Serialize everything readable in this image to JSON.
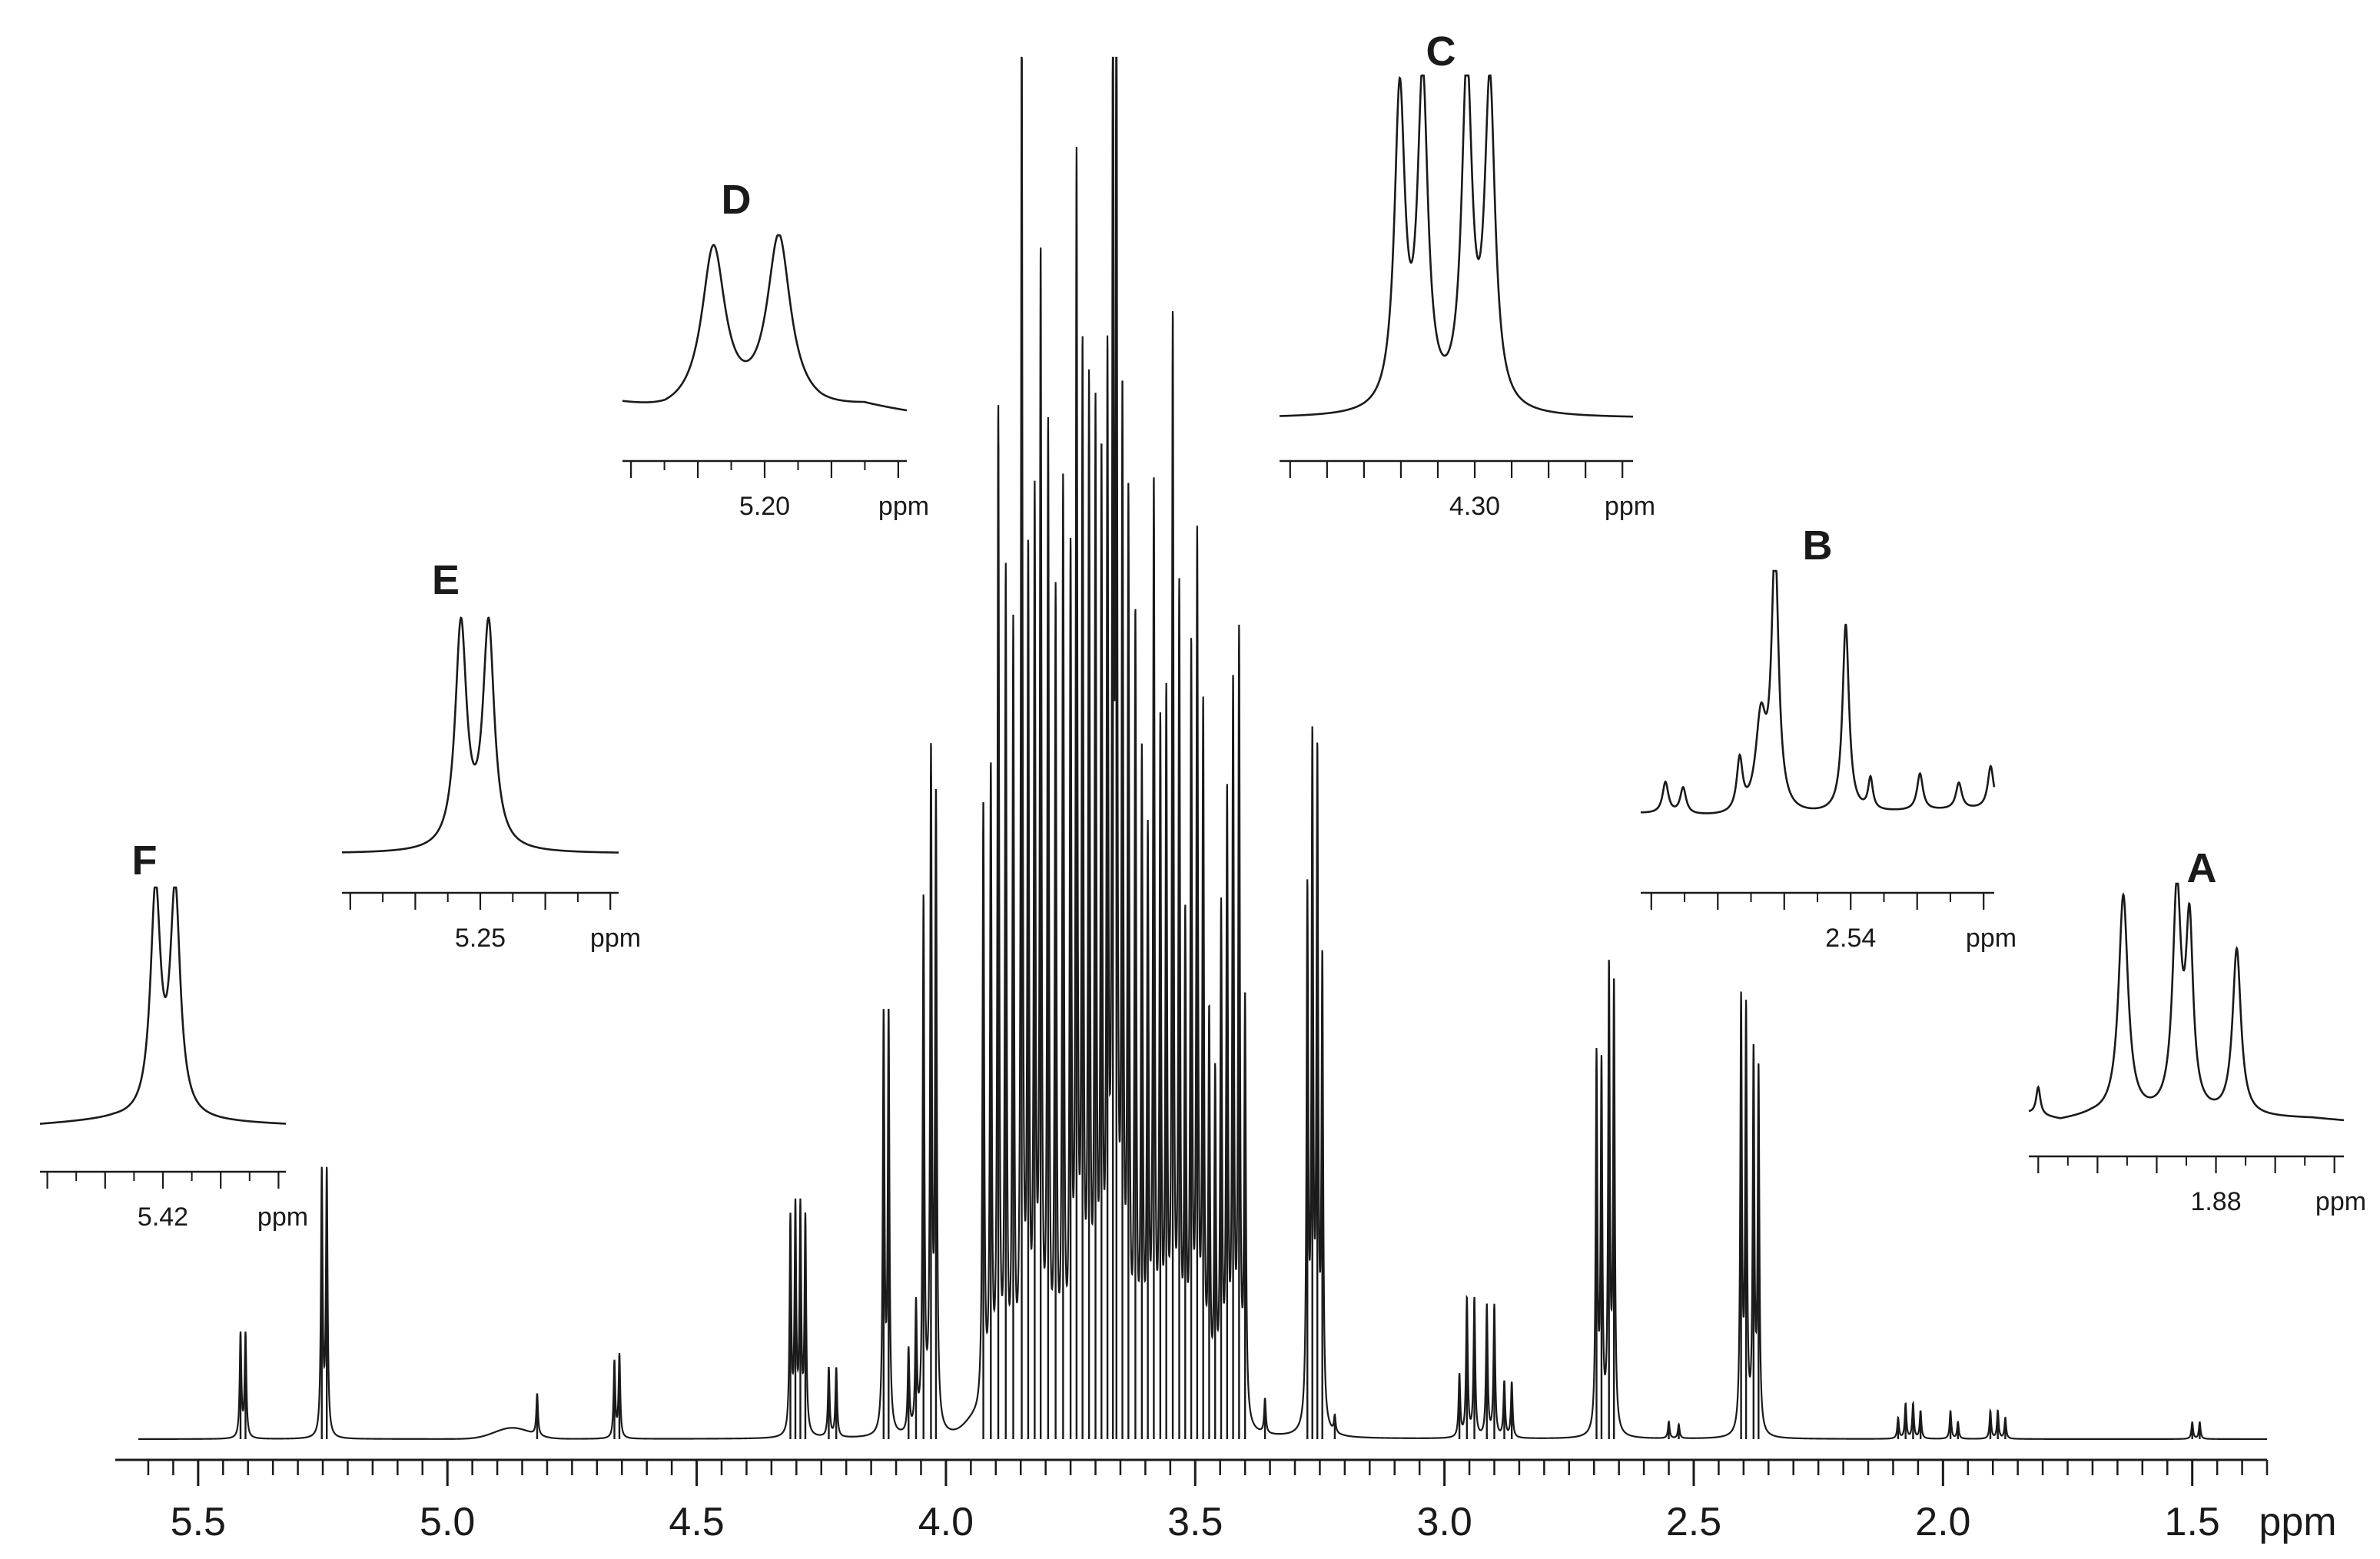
{
  "chart_data": [
    {
      "id": "main",
      "type": "line",
      "x_axis": {
        "unit": "ppm",
        "range": [
          5.62,
          1.35
        ],
        "reversed": true,
        "major_ticks": [
          5.5,
          5.0,
          4.5,
          4.0,
          3.5,
          3.0,
          2.5,
          2.0,
          1.5
        ],
        "tick_labels": [
          "5.5",
          "5.0",
          "4.5",
          "4.0",
          "3.5",
          "3.0",
          "2.5",
          "2.0",
          "1.5"
        ],
        "minor_step": 0.05
      },
      "y_axis": {
        "visible": false,
        "range": [
          0,
          1.0
        ]
      },
      "grid": false,
      "baseline_bumps": [
        {
          "x": 4.87,
          "height": 0.008,
          "width": 0.05
        },
        {
          "x": 3.94,
          "height": 0.01,
          "width": 0.03
        }
      ],
      "peaks": [
        {
          "x": 5.415,
          "h": 0.075,
          "w": 0.002
        },
        {
          "x": 5.405,
          "h": 0.075,
          "w": 0.002
        },
        {
          "x": 5.252,
          "h": 0.19,
          "w": 0.002
        },
        {
          "x": 5.242,
          "h": 0.19,
          "w": 0.002
        },
        {
          "x": 4.82,
          "h": 0.03,
          "w": 0.002
        },
        {
          "x": 4.665,
          "h": 0.055,
          "w": 0.002
        },
        {
          "x": 4.655,
          "h": 0.06,
          "w": 0.002
        },
        {
          "x": 4.312,
          "h": 0.155,
          "w": 0.002
        },
        {
          "x": 4.302,
          "h": 0.16,
          "w": 0.002
        },
        {
          "x": 4.292,
          "h": 0.16,
          "w": 0.002
        },
        {
          "x": 4.282,
          "h": 0.155,
          "w": 0.002
        },
        {
          "x": 4.235,
          "h": 0.05,
          "w": 0.002
        },
        {
          "x": 4.22,
          "h": 0.05,
          "w": 0.002
        },
        {
          "x": 4.125,
          "h": 0.3,
          "w": 0.002
        },
        {
          "x": 4.115,
          "h": 0.3,
          "w": 0.002
        },
        {
          "x": 4.075,
          "h": 0.06,
          "w": 0.002
        },
        {
          "x": 4.06,
          "h": 0.09,
          "w": 0.002
        },
        {
          "x": 4.045,
          "h": 0.38,
          "w": 0.002
        },
        {
          "x": 4.03,
          "h": 0.48,
          "w": 0.002
        },
        {
          "x": 4.02,
          "h": 0.45,
          "w": 0.002
        },
        {
          "x": 3.925,
          "h": 0.44,
          "w": 0.002
        },
        {
          "x": 3.91,
          "h": 0.46,
          "w": 0.002
        },
        {
          "x": 3.895,
          "h": 0.72,
          "w": 0.002
        },
        {
          "x": 3.88,
          "h": 0.6,
          "w": 0.002
        },
        {
          "x": 3.865,
          "h": 0.56,
          "w": 0.002
        },
        {
          "x": 3.848,
          "h": 1.0,
          "w": 0.002
        },
        {
          "x": 3.835,
          "h": 0.6,
          "w": 0.002
        },
        {
          "x": 3.822,
          "h": 0.64,
          "w": 0.002
        },
        {
          "x": 3.81,
          "h": 0.82,
          "w": 0.002
        },
        {
          "x": 3.795,
          "h": 0.7,
          "w": 0.002
        },
        {
          "x": 3.78,
          "h": 0.58,
          "w": 0.002
        },
        {
          "x": 3.765,
          "h": 0.66,
          "w": 0.002
        },
        {
          "x": 3.75,
          "h": 0.6,
          "w": 0.002
        },
        {
          "x": 3.738,
          "h": 0.88,
          "w": 0.002
        },
        {
          "x": 3.726,
          "h": 0.74,
          "w": 0.002
        },
        {
          "x": 3.713,
          "h": 0.72,
          "w": 0.002
        },
        {
          "x": 3.7,
          "h": 0.7,
          "w": 0.002
        },
        {
          "x": 3.688,
          "h": 0.66,
          "w": 0.002
        },
        {
          "x": 3.676,
          "h": 0.72,
          "w": 0.002
        },
        {
          "x": 3.665,
          "h": 1.0,
          "w": 0.002
        },
        {
          "x": 3.658,
          "h": 1.0,
          "w": 0.002
        },
        {
          "x": 3.646,
          "h": 0.7,
          "w": 0.002
        },
        {
          "x": 3.634,
          "h": 0.64,
          "w": 0.002
        },
        {
          "x": 3.62,
          "h": 0.56,
          "w": 0.002
        },
        {
          "x": 3.607,
          "h": 0.46,
          "w": 0.002
        },
        {
          "x": 3.595,
          "h": 0.4,
          "w": 0.002
        },
        {
          "x": 3.583,
          "h": 0.66,
          "w": 0.002
        },
        {
          "x": 3.57,
          "h": 0.48,
          "w": 0.002
        },
        {
          "x": 3.558,
          "h": 0.5,
          "w": 0.002
        },
        {
          "x": 3.545,
          "h": 0.78,
          "w": 0.002
        },
        {
          "x": 3.532,
          "h": 0.58,
          "w": 0.002
        },
        {
          "x": 3.52,
          "h": 0.34,
          "w": 0.002
        },
        {
          "x": 3.508,
          "h": 0.54,
          "w": 0.002
        },
        {
          "x": 3.496,
          "h": 0.62,
          "w": 0.002
        },
        {
          "x": 3.484,
          "h": 0.5,
          "w": 0.002
        },
        {
          "x": 3.472,
          "h": 0.28,
          "w": 0.002
        },
        {
          "x": 3.46,
          "h": 0.24,
          "w": 0.002
        },
        {
          "x": 3.448,
          "h": 0.36,
          "w": 0.002
        },
        {
          "x": 3.436,
          "h": 0.44,
          "w": 0.002
        },
        {
          "x": 3.424,
          "h": 0.52,
          "w": 0.002
        },
        {
          "x": 3.412,
          "h": 0.56,
          "w": 0.002
        },
        {
          "x": 3.4,
          "h": 0.3,
          "w": 0.002
        },
        {
          "x": 3.36,
          "h": 0.025,
          "w": 0.002
        },
        {
          "x": 3.275,
          "h": 0.38,
          "w": 0.002
        },
        {
          "x": 3.265,
          "h": 0.48,
          "w": 0.002
        },
        {
          "x": 3.255,
          "h": 0.47,
          "w": 0.002
        },
        {
          "x": 3.245,
          "h": 0.33,
          "w": 0.002
        },
        {
          "x": 3.22,
          "h": 0.012,
          "w": 0.002
        },
        {
          "x": 2.97,
          "h": 0.045,
          "w": 0.002
        },
        {
          "x": 2.955,
          "h": 0.1,
          "w": 0.002
        },
        {
          "x": 2.94,
          "h": 0.1,
          "w": 0.002
        },
        {
          "x": 2.915,
          "h": 0.095,
          "w": 0.002
        },
        {
          "x": 2.9,
          "h": 0.095,
          "w": 0.002
        },
        {
          "x": 2.88,
          "h": 0.04,
          "w": 0.002
        },
        {
          "x": 2.865,
          "h": 0.04,
          "w": 0.002
        },
        {
          "x": 2.695,
          "h": 0.27,
          "w": 0.002
        },
        {
          "x": 2.685,
          "h": 0.26,
          "w": 0.002
        },
        {
          "x": 2.67,
          "h": 0.33,
          "w": 0.002
        },
        {
          "x": 2.66,
          "h": 0.32,
          "w": 0.002
        },
        {
          "x": 2.55,
          "h": 0.012,
          "w": 0.002
        },
        {
          "x": 2.53,
          "h": 0.01,
          "w": 0.002
        },
        {
          "x": 2.405,
          "h": 0.31,
          "w": 0.002
        },
        {
          "x": 2.395,
          "h": 0.3,
          "w": 0.002
        },
        {
          "x": 2.38,
          "h": 0.27,
          "w": 0.002
        },
        {
          "x": 2.37,
          "h": 0.26,
          "w": 0.002
        },
        {
          "x": 2.09,
          "h": 0.015,
          "w": 0.002
        },
        {
          "x": 2.075,
          "h": 0.025,
          "w": 0.002
        },
        {
          "x": 2.06,
          "h": 0.025,
          "w": 0.002
        },
        {
          "x": 2.045,
          "h": 0.02,
          "w": 0.002
        },
        {
          "x": 1.985,
          "h": 0.02,
          "w": 0.002
        },
        {
          "x": 1.97,
          "h": 0.012,
          "w": 0.002
        },
        {
          "x": 1.905,
          "h": 0.02,
          "w": 0.002
        },
        {
          "x": 1.89,
          "h": 0.02,
          "w": 0.002
        },
        {
          "x": 1.875,
          "h": 0.015,
          "w": 0.002
        },
        {
          "x": 1.5,
          "h": 0.012,
          "w": 0.002
        },
        {
          "x": 1.485,
          "h": 0.012,
          "w": 0.002
        }
      ],
      "xlabel": "ppm"
    },
    {
      "id": "inset-A",
      "type": "line",
      "label": "A",
      "xlabel": "ppm",
      "tick_label": "1.88",
      "labeled_tick_index": 3,
      "x_range": [
        0,
        1
      ],
      "y_range": [
        0,
        1
      ],
      "major_ticks": 6,
      "minor_ticks": true,
      "baseline": [
        {
          "x": 0,
          "y": 0.05
        },
        {
          "x": 0.1,
          "y": 0.02
        },
        {
          "x": 0.2,
          "y": 0.04
        },
        {
          "x": 0.9,
          "y": 0.03
        },
        {
          "x": 1,
          "y": 0.02
        }
      ],
      "peaks": [
        {
          "x": 0.03,
          "h": 0.12,
          "w": 0.008
        },
        {
          "x": 0.3,
          "h": 0.95,
          "w": 0.018
        },
        {
          "x": 0.47,
          "h": 0.95,
          "w": 0.016
        },
        {
          "x": 0.51,
          "h": 0.78,
          "w": 0.014
        },
        {
          "x": 0.66,
          "h": 0.72,
          "w": 0.016
        }
      ]
    },
    {
      "id": "inset-B",
      "type": "line",
      "label": "B",
      "xlabel": "ppm",
      "tick_label": "2.54",
      "labeled_tick_index": 3,
      "x_range": [
        0,
        1
      ],
      "y_range": [
        0,
        1
      ],
      "major_ticks": 6,
      "minor_ticks": true,
      "baseline": [
        {
          "x": 0,
          "y": 0.12
        },
        {
          "x": 0.3,
          "y": 0.1
        },
        {
          "x": 0.6,
          "y": 0.12
        },
        {
          "x": 1,
          "y": 0.14
        }
      ],
      "peaks": [
        {
          "x": 0.07,
          "h": 0.12,
          "w": 0.01
        },
        {
          "x": 0.12,
          "h": 0.1,
          "w": 0.01
        },
        {
          "x": 0.28,
          "h": 0.2,
          "w": 0.01
        },
        {
          "x": 0.34,
          "h": 0.35,
          "w": 0.018
        },
        {
          "x": 0.38,
          "h": 1.0,
          "w": 0.012
        },
        {
          "x": 0.58,
          "h": 0.72,
          "w": 0.011
        },
        {
          "x": 0.65,
          "h": 0.12,
          "w": 0.008
        },
        {
          "x": 0.79,
          "h": 0.14,
          "w": 0.01
        },
        {
          "x": 0.9,
          "h": 0.1,
          "w": 0.01
        },
        {
          "x": 0.99,
          "h": 0.16,
          "w": 0.01
        }
      ]
    },
    {
      "id": "inset-C",
      "type": "line",
      "label": "C",
      "xlabel": "ppm",
      "tick_label": "4.30",
      "labeled_tick_index": 5,
      "x_range": [
        0,
        1
      ],
      "y_range": [
        0,
        1
      ],
      "major_ticks": 10,
      "minor_ticks": false,
      "baseline": [
        {
          "x": 0,
          "y": 0.02
        },
        {
          "x": 1,
          "y": 0.02
        }
      ],
      "peaks": [
        {
          "x": 0.34,
          "h": 0.94,
          "w": 0.018
        },
        {
          "x": 0.405,
          "h": 0.97,
          "w": 0.018
        },
        {
          "x": 0.53,
          "h": 1.0,
          "w": 0.018
        },
        {
          "x": 0.595,
          "h": 0.96,
          "w": 0.018
        }
      ]
    },
    {
      "id": "inset-D",
      "type": "line",
      "label": "D",
      "xlabel": "ppm",
      "tick_label": "5.20",
      "labeled_tick_index": 2,
      "x_range": [
        0,
        1
      ],
      "y_range": [
        0,
        1
      ],
      "major_ticks": 5,
      "minor_ticks": true,
      "baseline": [
        {
          "x": 0,
          "y": 0.1
        },
        {
          "x": 0.15,
          "y": 0.05
        },
        {
          "x": 0.7,
          "y": 0.06
        },
        {
          "x": 0.85,
          "y": 0.09
        },
        {
          "x": 1,
          "y": 0.06
        }
      ],
      "peaks": [
        {
          "x": 0.32,
          "h": 0.9,
          "w": 0.05
        },
        {
          "x": 0.55,
          "h": 0.96,
          "w": 0.05
        }
      ]
    },
    {
      "id": "inset-E",
      "type": "line",
      "label": "E",
      "xlabel": "ppm",
      "tick_label": "5.25",
      "labeled_tick_index": 2,
      "x_range": [
        0,
        1
      ],
      "y_range": [
        0,
        1
      ],
      "major_ticks": 5,
      "minor_ticks": true,
      "baseline": [
        {
          "x": 0,
          "y": 0.02
        },
        {
          "x": 1,
          "y": 0.02
        }
      ],
      "peaks": [
        {
          "x": 0.43,
          "h": 0.96,
          "w": 0.025
        },
        {
          "x": 0.53,
          "h": 0.96,
          "w": 0.025
        }
      ]
    },
    {
      "id": "inset-F",
      "type": "line",
      "label": "F",
      "xlabel": "ppm",
      "tick_label": "5.42",
      "labeled_tick_index": 2,
      "x_range": [
        0,
        1
      ],
      "y_range": [
        0,
        1
      ],
      "major_ticks": 5,
      "minor_ticks": true,
      "baseline": [
        {
          "x": 0,
          "y": 0.02
        },
        {
          "x": 0.3,
          "y": 0.04
        },
        {
          "x": 0.7,
          "y": 0.03
        },
        {
          "x": 1,
          "y": 0.02
        }
      ],
      "peaks": [
        {
          "x": 0.47,
          "h": 0.96,
          "w": 0.025
        },
        {
          "x": 0.55,
          "h": 0.96,
          "w": 0.025
        }
      ]
    }
  ]
}
